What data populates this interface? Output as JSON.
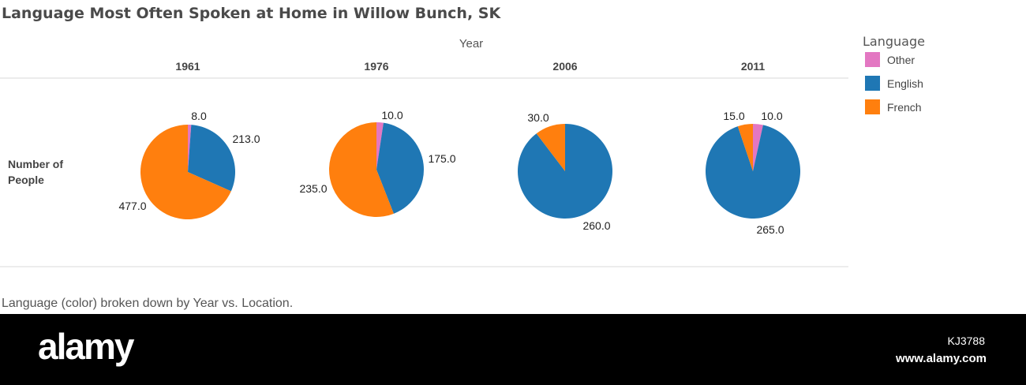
{
  "chart_data": {
    "type": "pie",
    "title": "Language Most Often Spoken at Home in Willow Bunch, SK",
    "column_header": "Year",
    "row_label": "Number of People",
    "caption": "Language (color) broken down by Year vs. Location.",
    "legend": {
      "title": "Language",
      "placement": "top-right",
      "items": [
        {
          "name": "Other",
          "color": "#e377c2"
        },
        {
          "name": "English",
          "color": "#1f77b4"
        },
        {
          "name": "French",
          "color": "#ff7f0e"
        }
      ]
    },
    "pies": [
      {
        "year": "1961",
        "slices": [
          {
            "name": "Other",
            "value": 8.0,
            "label": "8.0"
          },
          {
            "name": "English",
            "value": 213.0,
            "label": "213.0"
          },
          {
            "name": "French",
            "value": 477.0,
            "label": "477.0"
          }
        ]
      },
      {
        "year": "1976",
        "slices": [
          {
            "name": "Other",
            "value": 10.0,
            "label": "10.0"
          },
          {
            "name": "English",
            "value": 175.0,
            "label": "175.0"
          },
          {
            "name": "French",
            "value": 235.0,
            "label": "235.0"
          }
        ]
      },
      {
        "year": "2006",
        "slices": [
          {
            "name": "English",
            "value": 260.0,
            "label": "260.0"
          },
          {
            "name": "French",
            "value": 30.0,
            "label": "30.0"
          }
        ]
      },
      {
        "year": "2011",
        "slices": [
          {
            "name": "Other",
            "value": 10.0,
            "label": "10.0"
          },
          {
            "name": "English",
            "value": 265.0,
            "label": "265.0"
          },
          {
            "name": "French",
            "value": 15.0,
            "label": "15.0"
          }
        ]
      }
    ]
  },
  "watermark": {
    "brand": "alamy",
    "image_id": "KJ3788",
    "url": "www.alamy.com"
  }
}
